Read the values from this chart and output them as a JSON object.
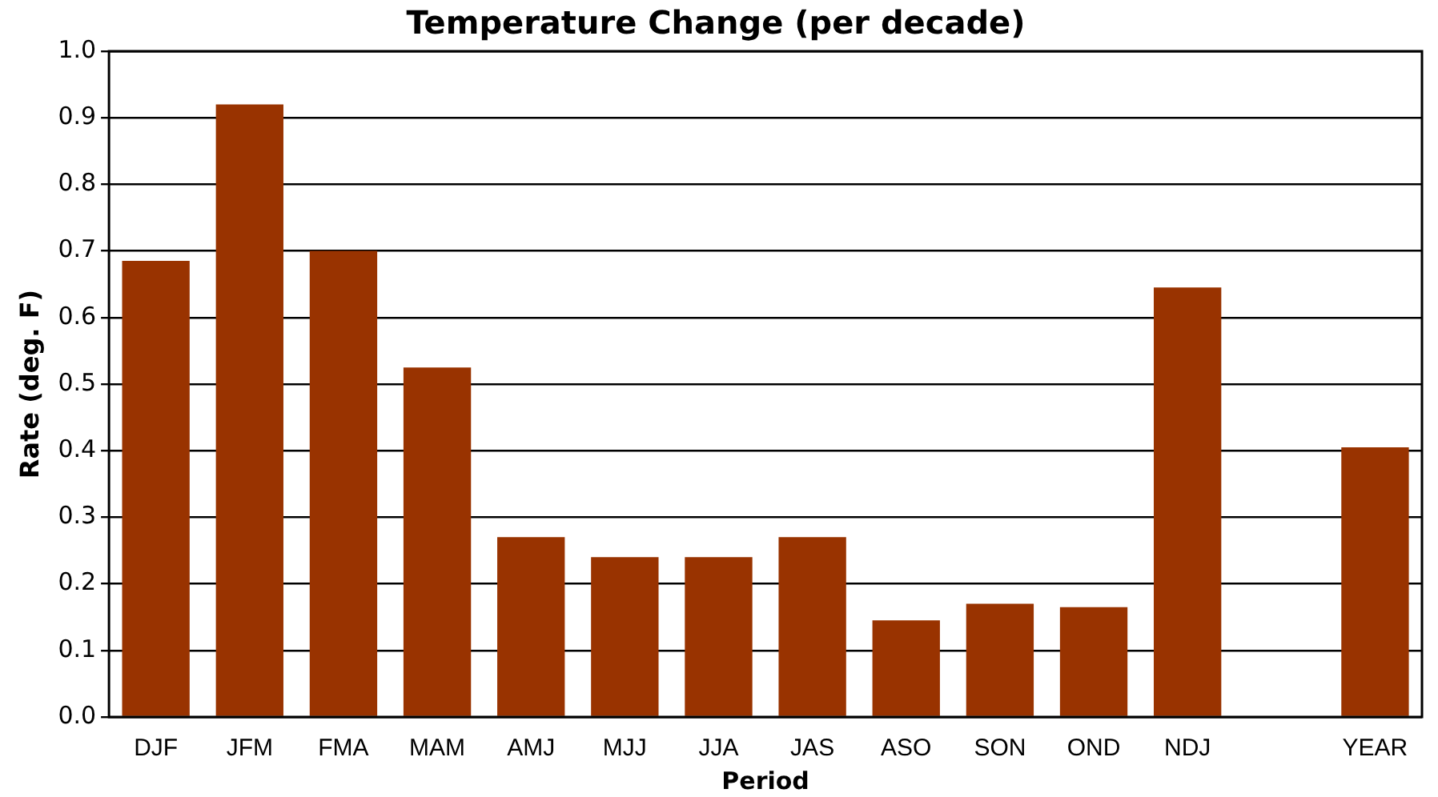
{
  "chart_data": {
    "type": "bar",
    "title": "Temperature Change (per decade)",
    "xlabel": "Period",
    "ylabel": "Rate (deg. F)",
    "categories": [
      "DJF",
      "JFM",
      "FMA",
      "MAM",
      "AMJ",
      "MJJ",
      "JJA",
      "JAS",
      "ASO",
      "SON",
      "OND",
      "NDJ",
      null,
      "YEAR"
    ],
    "values": [
      0.685,
      0.92,
      0.7,
      0.525,
      0.27,
      0.24,
      0.24,
      0.27,
      0.145,
      0.17,
      0.165,
      0.645,
      null,
      0.405
    ],
    "color": "#993300",
    "ylim": [
      0,
      1
    ],
    "yticks": [
      {
        "value": 0,
        "label": "0.0"
      },
      0.1,
      0.2,
      0.3,
      0.4,
      0.5,
      0.6,
      0.7,
      0.8,
      0.9,
      {
        "value": 1,
        "label": "1.0"
      }
    ],
    "grid": "y"
  }
}
